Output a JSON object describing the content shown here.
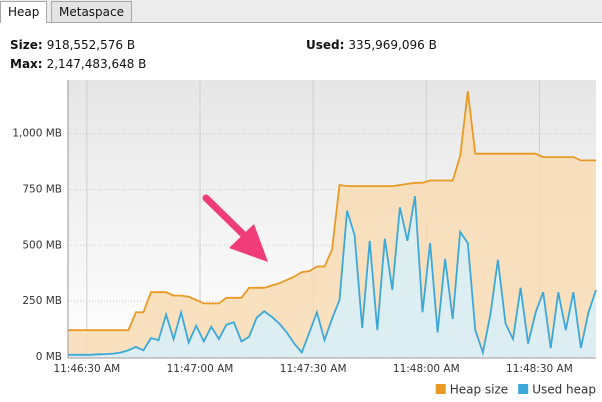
{
  "tabs": [
    "Heap",
    "Metaspace"
  ],
  "stats": [
    {
      "label": "Size:",
      "value": "918,552,576 B"
    },
    {
      "label": "Used:",
      "value": "335,969,096 B"
    },
    {
      "label": "Max:",
      "value": "2,147,483,648 B"
    }
  ],
  "chart_data": {
    "type": "area",
    "x": [
      "11:46:25 AM",
      "11:46:27 AM",
      "11:46:29 AM",
      "11:46:31 AM",
      "11:46:33 AM",
      "11:46:35 AM",
      "11:46:37 AM",
      "11:46:39 AM",
      "11:46:41 AM",
      "11:46:43 AM",
      "11:46:45 AM",
      "11:46:47 AM",
      "11:46:49 AM",
      "11:46:51 AM",
      "11:46:53 AM",
      "11:46:55 AM",
      "11:46:57 AM",
      "11:46:59 AM",
      "11:47:01 AM",
      "11:47:03 AM",
      "11:47:05 AM",
      "11:47:07 AM",
      "11:47:09 AM",
      "11:47:11 AM",
      "11:47:13 AM",
      "11:47:15 AM",
      "11:47:17 AM",
      "11:47:19 AM",
      "11:47:21 AM",
      "11:47:23 AM",
      "11:47:25 AM",
      "11:47:27 AM",
      "11:47:29 AM",
      "11:47:31 AM",
      "11:47:33 AM",
      "11:47:35 AM",
      "11:47:37 AM",
      "11:47:39 AM",
      "11:47:41 AM",
      "11:47:43 AM",
      "11:47:45 AM",
      "11:47:47 AM",
      "11:47:49 AM",
      "11:47:51 AM",
      "11:47:53 AM",
      "11:47:55 AM",
      "11:47:57 AM",
      "11:47:59 AM",
      "11:48:01 AM",
      "11:48:03 AM",
      "11:48:05 AM",
      "11:48:07 AM",
      "11:48:09 AM",
      "11:48:11 AM",
      "11:48:13 AM",
      "11:48:15 AM",
      "11:48:17 AM",
      "11:48:19 AM",
      "11:48:21 AM",
      "11:48:23 AM",
      "11:48:25 AM",
      "11:48:27 AM",
      "11:48:29 AM",
      "11:48:31 AM",
      "11:48:33 AM",
      "11:48:35 AM",
      "11:48:37 AM",
      "11:48:39 AM",
      "11:48:41 AM",
      "11:48:43 AM",
      "11:48:45 AM"
    ],
    "series": [
      {
        "name": "Heap size",
        "color": "#e89a24",
        "fill": "#f8dcb4",
        "values": [
          120,
          120,
          120,
          120,
          120,
          120,
          120,
          120,
          120,
          200,
          200,
          290,
          290,
          290,
          275,
          275,
          270,
          255,
          240,
          240,
          240,
          265,
          265,
          265,
          310,
          310,
          310,
          320,
          330,
          345,
          360,
          380,
          385,
          405,
          405,
          480,
          770,
          765,
          765,
          765,
          765,
          765,
          765,
          765,
          770,
          775,
          780,
          780,
          790,
          790,
          790,
          790,
          900,
          1190,
          910,
          910,
          910,
          910,
          910,
          910,
          910,
          910,
          910,
          895,
          895,
          895,
          895,
          895,
          880,
          880,
          880
        ]
      },
      {
        "name": "Used heap",
        "color": "#3ca8d8",
        "fill": "#d8f0fa",
        "values": [
          10,
          10,
          10,
          10,
          12,
          13,
          15,
          20,
          30,
          45,
          30,
          85,
          75,
          190,
          80,
          200,
          65,
          140,
          70,
          135,
          80,
          145,
          155,
          70,
          90,
          175,
          205,
          180,
          150,
          110,
          60,
          20,
          110,
          200,
          75,
          170,
          255,
          655,
          545,
          130,
          520,
          120,
          530,
          300,
          670,
          520,
          720,
          200,
          510,
          110,
          440,
          170,
          560,
          510,
          120,
          20,
          190,
          435,
          150,
          80,
          310,
          60,
          200,
          290,
          40,
          290,
          120,
          290,
          40,
          200,
          300
        ]
      }
    ],
    "xlim": [
      "11:46:25 AM",
      "11:48:45 AM"
    ],
    "xticks": [
      "11:46:30 AM",
      "11:47:00 AM",
      "11:47:30 AM",
      "11:48:00 AM",
      "11:48:30 AM"
    ],
    "ylim": [
      0,
      1240
    ],
    "yticks": [
      {
        "value": 0,
        "label": "0 MB"
      },
      {
        "value": 250,
        "label": "250 MB"
      },
      {
        "value": 500,
        "label": "500 MB"
      },
      {
        "value": 750,
        "label": "750 MB"
      },
      {
        "value": 1000,
        "label": "1,000 MB"
      }
    ],
    "grid": true,
    "legend": "bottom-right"
  }
}
